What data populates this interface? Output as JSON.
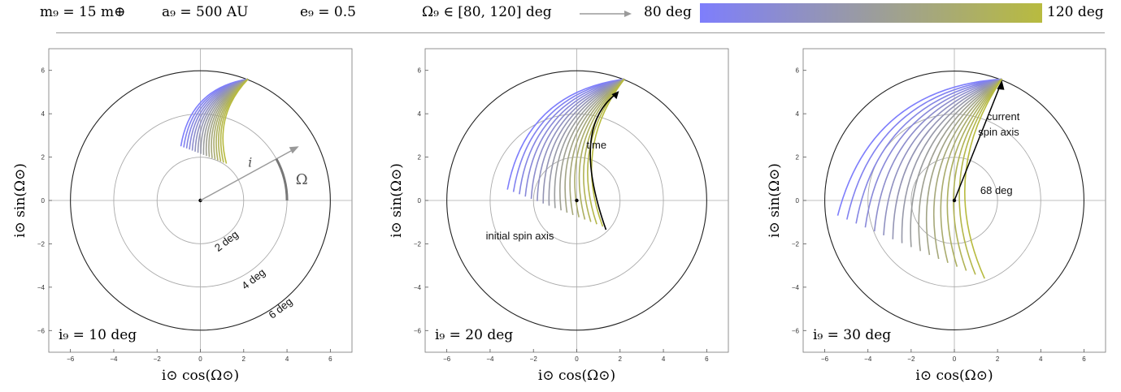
{
  "header": {
    "m9": "m₉ = 15 m⊕",
    "a9": "a₉ = 500 AU",
    "e9": "e₉ = 0.5",
    "omega_range": "Ω₉ ∈ [80, 120] deg",
    "gradient_start_label": "80 deg",
    "gradient_end_label": "120 deg",
    "gradient_colors": [
      "#7e7efc",
      "#b8bb3f"
    ]
  },
  "axes": {
    "xlabel": "i⊙ cos(Ω⊙)",
    "ylabel": "i⊙ sin(Ω⊙)"
  },
  "annotations": {
    "ring_2": "2 deg",
    "ring_4": "4 deg",
    "ring_6": "6 deg",
    "i_label": "i",
    "omega_label": "Ω",
    "time": "time",
    "initial_spin_axis": "initial spin axis",
    "current_line1": "current",
    "current_line2": "spin axis",
    "deg68": "68 deg"
  },
  "chart_data": [
    {
      "type": "line",
      "panel_label": "i₉ = 10 deg",
      "xlabel": "i⊙ cos(Ω⊙)",
      "ylabel": "i⊙ sin(Ω⊙)",
      "xlim": [
        -7,
        7
      ],
      "ylim": [
        -7,
        7
      ],
      "xticks": [
        -6,
        -4,
        -2,
        0,
        2,
        4,
        6
      ],
      "yticks": [
        -6,
        -4,
        -2,
        0,
        2,
        4,
        6
      ],
      "reference_circles_deg": [
        2,
        4,
        6
      ],
      "series_count": 17,
      "omega9_range_deg": [
        80,
        120
      ],
      "current_spin_axis": [
        2.2,
        5.6
      ],
      "track_start_first": [
        -0.9,
        2.5
      ],
      "track_start_last": [
        1.2,
        1.7
      ]
    },
    {
      "type": "line",
      "panel_label": "i₉ = 20 deg",
      "xlabel": "i⊙ cos(Ω⊙)",
      "ylabel": "i⊙ sin(Ω⊙)",
      "xlim": [
        -7,
        7
      ],
      "ylim": [
        -7,
        7
      ],
      "xticks": [
        -6,
        -4,
        -2,
        0,
        2,
        4,
        6
      ],
      "yticks": [
        -6,
        -4,
        -2,
        0,
        2,
        4,
        6
      ],
      "reference_circles_deg": [
        2,
        4,
        6
      ],
      "series_count": 17,
      "omega9_range_deg": [
        80,
        120
      ],
      "current_spin_axis": [
        2.2,
        5.6
      ],
      "track_start_first": [
        -3.2,
        0.5
      ],
      "track_start_last": [
        1.2,
        -1.2
      ]
    },
    {
      "type": "line",
      "panel_label": "i₉ = 30 deg",
      "xlabel": "i⊙ cos(Ω⊙)",
      "ylabel": "i⊙ sin(Ω⊙)",
      "xlim": [
        -7,
        7
      ],
      "ylim": [
        -7,
        7
      ],
      "xticks": [
        -6,
        -4,
        -2,
        0,
        2,
        4,
        6
      ],
      "yticks": [
        -6,
        -4,
        -2,
        0,
        2,
        4,
        6
      ],
      "reference_circles_deg": [
        2,
        4,
        6
      ],
      "series_count": 17,
      "omega9_range_deg": [
        80,
        120
      ],
      "current_spin_axis": [
        2.2,
        5.6
      ],
      "track_start_first": [
        -5.4,
        -0.7
      ],
      "track_start_last": [
        1.4,
        -3.6
      ]
    }
  ]
}
